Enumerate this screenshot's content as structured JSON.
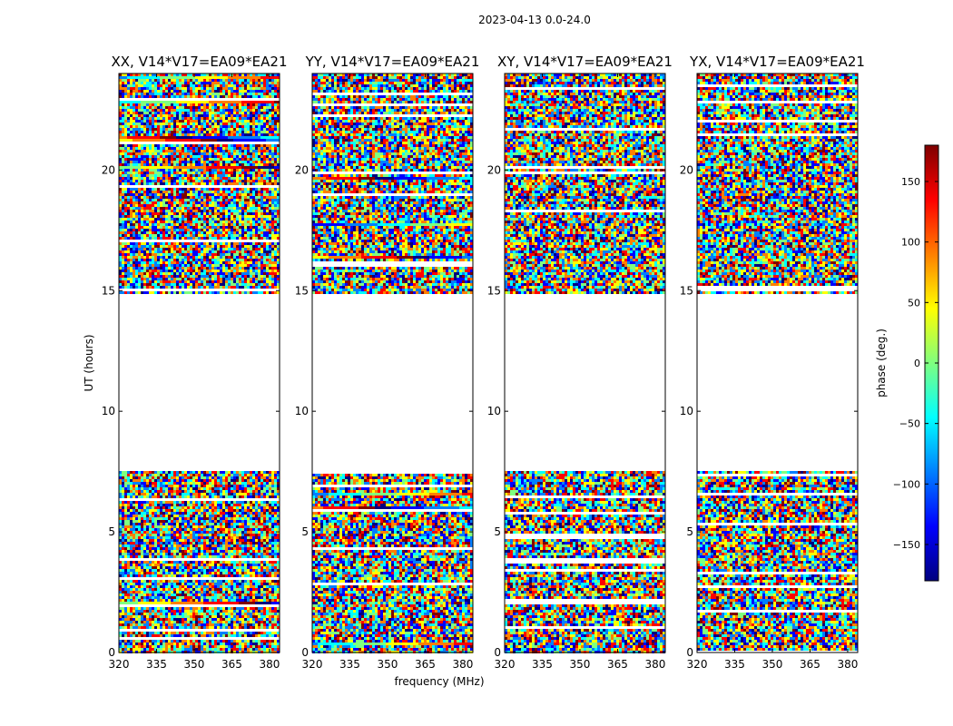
{
  "figure": {
    "suptitle": "2023-04-13 0.0-24.0",
    "xlabel": "frequency (MHz)",
    "ylabel": "UT (hours)",
    "colorbar_label": "phase (deg.)"
  },
  "chart_data": {
    "type": "heatmap",
    "suptitle": "2023-04-13 0.0-24.0",
    "xlabel": "frequency (MHz)",
    "ylabel": "UT (hours)",
    "xlim": [
      320,
      384
    ],
    "ylim": [
      0,
      24
    ],
    "x_ticks": [
      320,
      335,
      350,
      365,
      380
    ],
    "y_ticks": [
      0,
      5,
      10,
      15,
      20
    ],
    "colorbar": {
      "label": "phase (deg.)",
      "range": [
        -180,
        180
      ],
      "ticks": [
        150,
        100,
        50,
        0,
        -50,
        -100,
        -150
      ],
      "tick_labels": [
        "150",
        "100",
        "50",
        "0",
        "−50",
        "−100",
        "−150"
      ],
      "colormap": "jet"
    },
    "panels": [
      {
        "title": "XX, V14*V17=EA09*EA21",
        "polarization": "XX"
      },
      {
        "title": "YY, V14*V17=EA09*EA21",
        "polarization": "YY"
      },
      {
        "title": "XY, V14*V17=EA09*EA21",
        "polarization": "XY"
      },
      {
        "title": "YX, V14*V17=EA09*EA21",
        "polarization": "YX"
      }
    ],
    "data_gaps_hours": [
      [
        7.6,
        14.9
      ]
    ],
    "colors": {
      "jet": [
        "#00007f",
        "#0000ff",
        "#007fff",
        "#00ffff",
        "#7fff7f",
        "#ffff00",
        "#ff7f00",
        "#ff0000",
        "#7f0000"
      ]
    }
  }
}
